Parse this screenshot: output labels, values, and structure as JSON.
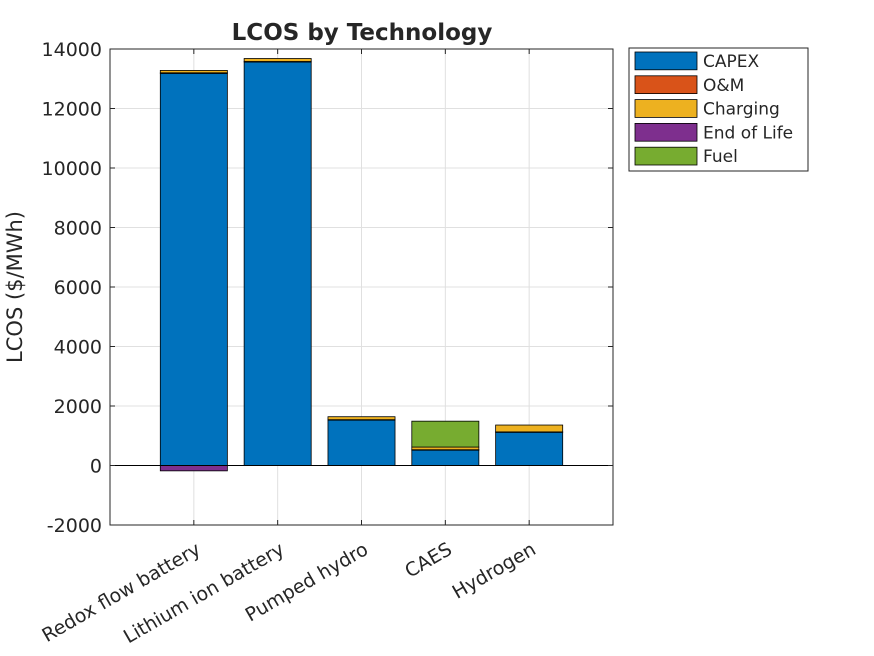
{
  "chart_data": {
    "type": "bar",
    "stacked": true,
    "title": "LCOS by Technology",
    "ylabel": "LCOS ($/MWh)",
    "xlabel": "",
    "ylim": [
      -2000,
      14000
    ],
    "yticks": [
      -2000,
      0,
      2000,
      4000,
      6000,
      8000,
      10000,
      12000,
      14000
    ],
    "categories": [
      "Redox flow battery",
      "Lithium ion battery",
      "Pumped hydro",
      "CAES",
      "Hydrogen"
    ],
    "grid": true,
    "legend_position": "outside top-right",
    "series": [
      {
        "name": "CAPEX",
        "color": "#0072BD",
        "values": [
          13180,
          13560,
          1530,
          520,
          1120
        ]
      },
      {
        "name": "O&M",
        "color": "#D95319",
        "values": [
          20,
          20,
          10,
          10,
          10
        ]
      },
      {
        "name": "Charging",
        "color": "#EDB120",
        "values": [
          80,
          100,
          100,
          90,
          230
        ]
      },
      {
        "name": "End of Life",
        "color": "#7E2F8E",
        "values": [
          -180,
          0,
          0,
          0,
          0
        ]
      },
      {
        "name": "Fuel",
        "color": "#77AC30",
        "values": [
          0,
          0,
          0,
          870,
          0
        ]
      }
    ]
  }
}
